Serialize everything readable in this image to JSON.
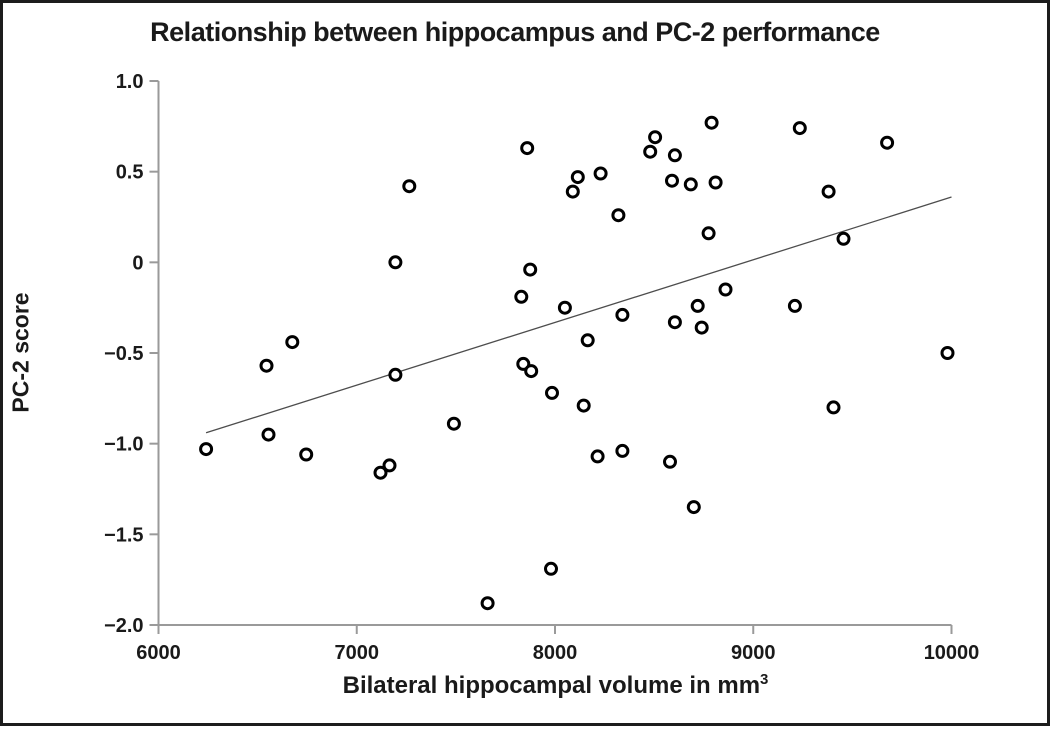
{
  "figure": {
    "background": "#ffffff",
    "border_color": "#1c1c1c",
    "axis_color": "#9a9a9a",
    "text_color": "#1a1a1a",
    "trend_color": "#4d4d4d",
    "marker_fill": "#ffffff",
    "marker_stroke": "#000000"
  },
  "chart_data": {
    "type": "scatter",
    "title": "Relationship between hippocampus and PC-2 performance",
    "xlabel_main": "Bilateral hippocampal volume in mm",
    "xlabel_sup": "3",
    "ylabel": "PC-2 score",
    "xlim": [
      6000,
      10000
    ],
    "ylim": [
      -2.0,
      1.0
    ],
    "grid": "off",
    "legend": "none",
    "x_ticks": [
      {
        "value": 6000,
        "label": "6000"
      },
      {
        "value": 7000,
        "label": "7000"
      },
      {
        "value": 8000,
        "label": "8000"
      },
      {
        "value": 9000,
        "label": "9000"
      },
      {
        "value": 10000,
        "label": "10000"
      }
    ],
    "y_ticks": [
      {
        "value": 1.0,
        "label": "1.0"
      },
      {
        "value": 0.5,
        "label": "0.5"
      },
      {
        "value": 0.0,
        "label": "0"
      },
      {
        "value": -0.5,
        "label": "−0.5"
      },
      {
        "value": -1.0,
        "label": "−1.0"
      },
      {
        "value": -1.5,
        "label": "−1.5"
      },
      {
        "value": -2.0,
        "label": "−2.0"
      }
    ],
    "trend_line": {
      "x1": 6240,
      "y1": -0.94,
      "x2": 10000,
      "y2": 0.36
    },
    "points": [
      [
        6240,
        -1.03
      ],
      [
        6545,
        -0.57
      ],
      [
        6555,
        -0.95
      ],
      [
        6675,
        -0.44
      ],
      [
        6745,
        -1.06
      ],
      [
        7120,
        -1.16
      ],
      [
        7165,
        -1.12
      ],
      [
        7195,
        -0.62
      ],
      [
        7195,
        0.0
      ],
      [
        7265,
        0.42
      ],
      [
        7490,
        -0.89
      ],
      [
        7660,
        -1.88
      ],
      [
        7830,
        -0.19
      ],
      [
        7840,
        -0.56
      ],
      [
        7860,
        0.63
      ],
      [
        7875,
        -0.04
      ],
      [
        7880,
        -0.6
      ],
      [
        7980,
        -1.69
      ],
      [
        7985,
        -0.72
      ],
      [
        8050,
        -0.25
      ],
      [
        8090,
        0.39
      ],
      [
        8115,
        0.47
      ],
      [
        8145,
        -0.79
      ],
      [
        8165,
        -0.43
      ],
      [
        8215,
        -1.07
      ],
      [
        8230,
        0.49
      ],
      [
        8320,
        0.26
      ],
      [
        8340,
        -0.29
      ],
      [
        8340,
        -1.04
      ],
      [
        8480,
        0.61
      ],
      [
        8505,
        0.69
      ],
      [
        8580,
        -1.1
      ],
      [
        8590,
        0.45
      ],
      [
        8605,
        0.59
      ],
      [
        8605,
        -0.33
      ],
      [
        8685,
        0.43
      ],
      [
        8700,
        -1.35
      ],
      [
        8720,
        -0.24
      ],
      [
        8740,
        -0.36
      ],
      [
        8775,
        0.16
      ],
      [
        8790,
        0.77
      ],
      [
        8810,
        0.44
      ],
      [
        8860,
        -0.15
      ],
      [
        9210,
        -0.24
      ],
      [
        9235,
        0.74
      ],
      [
        9380,
        0.39
      ],
      [
        9405,
        -0.8
      ],
      [
        9455,
        0.13
      ],
      [
        9675,
        0.66
      ],
      [
        9980,
        -0.5
      ]
    ]
  }
}
